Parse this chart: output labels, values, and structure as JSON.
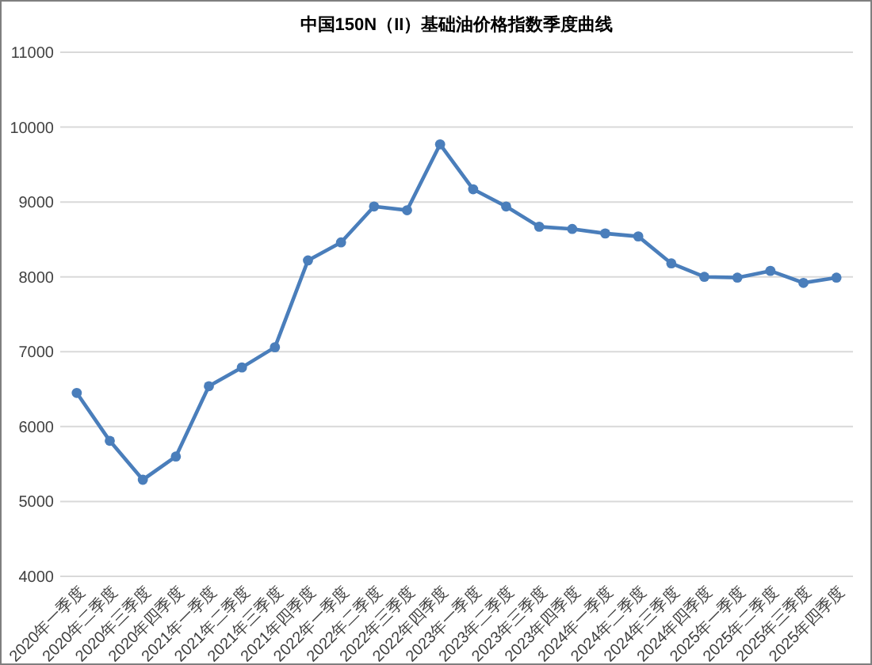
{
  "chart_data": {
    "type": "line",
    "title": "中国150N（II）基础油价格指数季度曲线",
    "categories": [
      "2020年一季度",
      "2020年二季度",
      "2020年三季度",
      "2020年四季度",
      "2021年一季度",
      "2021年二季度",
      "2021年三季度",
      "2021年四季度",
      "2022年一季度",
      "2022年二季度",
      "2022年三季度",
      "2022年四季度",
      "2023年一季度",
      "2023年二季度",
      "2023年三季度",
      "2023年四季度",
      "2024年一季度",
      "2024年二季度",
      "2024年三季度",
      "2024年四季度",
      "2025年一季度",
      "2025年二季度",
      "2025年三季度",
      "2025年四季度"
    ],
    "series": [
      {
        "color": "#4a7ebb",
        "values": [
          6450,
          5810,
          5290,
          5600,
          6540,
          6790,
          7060,
          8220,
          8460,
          8940,
          8890,
          9770,
          9170,
          8940,
          8670,
          8640,
          8580,
          8540,
          8180,
          8000,
          7990,
          8080,
          7920,
          7990
        ]
      }
    ],
    "ylim": [
      4000,
      11000
    ],
    "yticks": [
      4000,
      5000,
      6000,
      7000,
      8000,
      9000,
      10000,
      11000
    ],
    "grid": "y",
    "marker": "circle",
    "line_style": "solid"
  }
}
